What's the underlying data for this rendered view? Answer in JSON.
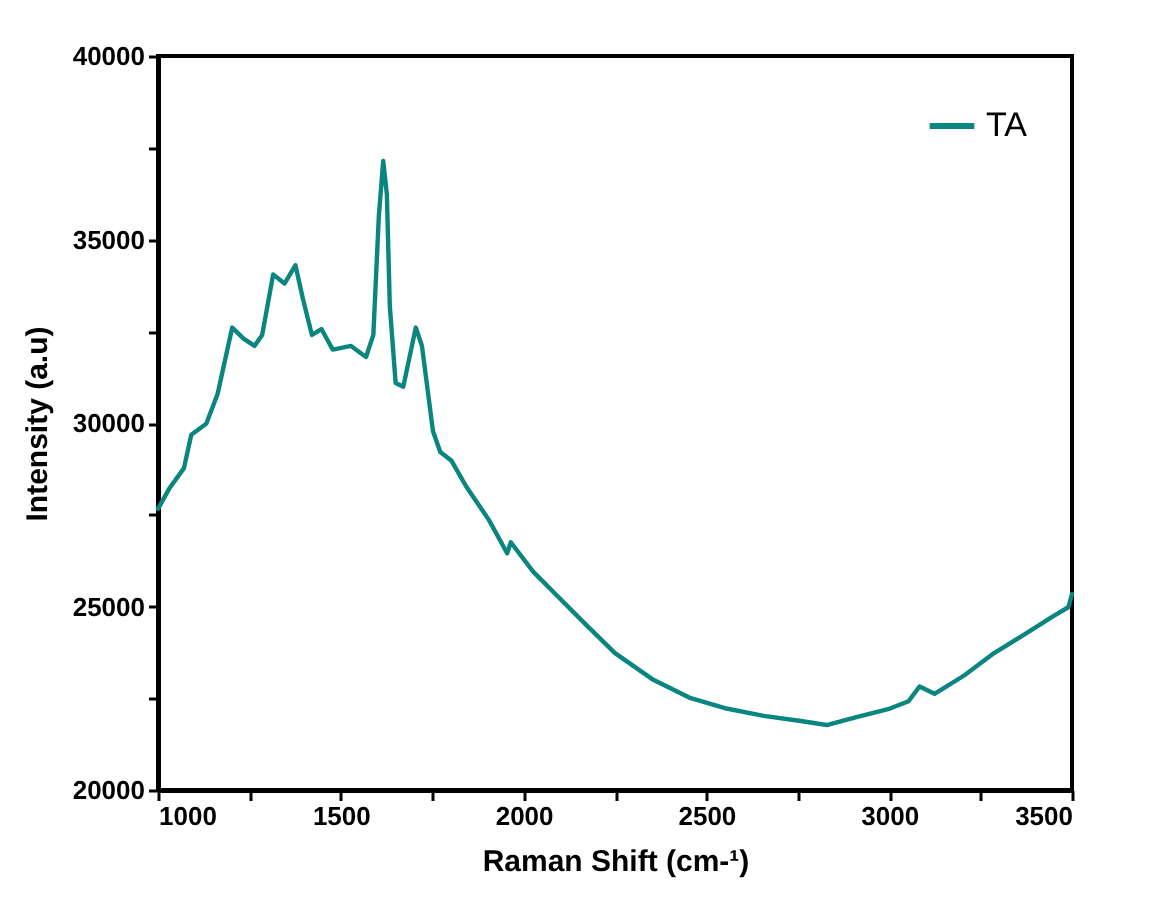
{
  "chart_data": {
    "type": "line",
    "xlabel": "Raman Shift (cm-¹)",
    "ylabel": "Intensity (a.u)",
    "x": [
      1000,
      1030,
      1071,
      1091,
      1132,
      1163,
      1203,
      1234,
      1264,
      1285,
      1315,
      1346,
      1376,
      1396,
      1421,
      1447,
      1478,
      1528,
      1569,
      1589,
      1604,
      1616,
      1626,
      1634,
      1650,
      1671,
      1705,
      1722,
      1752,
      1772,
      1803,
      1843,
      1905,
      1955,
      1965,
      2026,
      2087,
      2167,
      2250,
      2352,
      2453,
      2555,
      2657,
      2758,
      2829,
      2900,
      3002,
      3053,
      3083,
      3124,
      3205,
      3287,
      3368,
      3449,
      3490,
      3500
    ],
    "series": [
      {
        "name": "TA",
        "color": "#0b8580",
        "values": [
          27660,
          28200,
          28770,
          29680,
          29980,
          30790,
          32600,
          32300,
          32100,
          32400,
          34050,
          33800,
          34300,
          33400,
          32400,
          32560,
          32000,
          32100,
          31800,
          32400,
          35630,
          37140,
          36230,
          33200,
          31090,
          30990,
          32600,
          32100,
          29780,
          29210,
          28970,
          28270,
          27360,
          26450,
          26750,
          25950,
          25340,
          24540,
          23730,
          23020,
          22520,
          22220,
          22020,
          21880,
          21770,
          21960,
          22220,
          22420,
          22820,
          22620,
          23120,
          23730,
          24230,
          24740,
          24980,
          25340
        ]
      }
    ],
    "xlim": [
      1000,
      3500
    ],
    "ylim": [
      20000,
      40000
    ],
    "xticks": [
      1000,
      {
        "value": 1250,
        "label": null
      },
      1500,
      {
        "value": 1750,
        "label": null
      },
      2000,
      {
        "value": 2250,
        "label": null
      },
      2500,
      {
        "value": 2750,
        "label": null
      },
      3000,
      {
        "value": 3250,
        "label": null
      },
      3500
    ],
    "yticks": [
      20000,
      {
        "value": 22500,
        "label": null
      },
      25000,
      {
        "value": 27500,
        "label": null
      },
      30000,
      {
        "value": 32500,
        "label": null
      },
      35000,
      {
        "value": 37500,
        "label": null
      },
      40000
    ],
    "legend": "top right",
    "line_style": "solid"
  }
}
